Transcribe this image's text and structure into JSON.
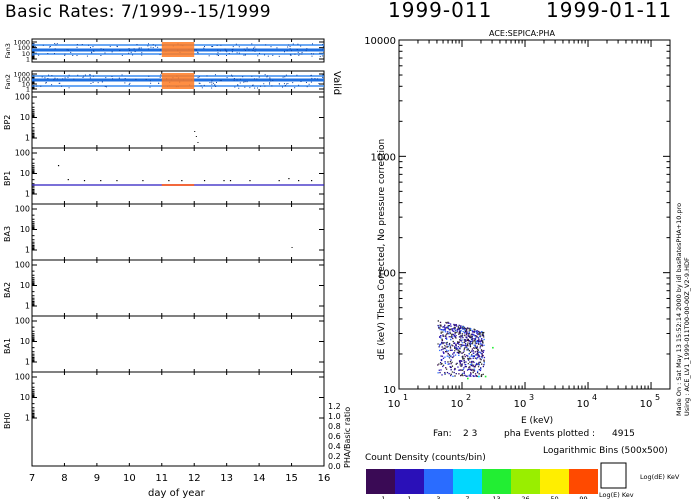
{
  "header": {
    "title": "Basic Rates: 7/1999--15/1999",
    "doy_code": "1999-011",
    "date": "1999-01-11"
  },
  "left_panels": {
    "xlabel": "day of year",
    "x_ticks": [
      "7",
      "8",
      "9",
      "10",
      "11",
      "12",
      "13",
      "14",
      "15",
      "16"
    ],
    "xlim": [
      7,
      16
    ],
    "highlight_day_range": [
      11,
      12
    ],
    "panels": [
      {
        "name": "Fan3",
        "ticks": [
          "1000",
          "100",
          "10",
          "1"
        ],
        "right_label": "Valid"
      },
      {
        "name": "Fan2",
        "ticks": [
          "1000",
          "100",
          "10",
          "1"
        ],
        "right_label": ""
      },
      {
        "name": "BP2",
        "ticks": [
          "100",
          "10",
          "1"
        ],
        "right_label": ""
      },
      {
        "name": "BP1",
        "ticks": [
          "100",
          "10",
          "1"
        ],
        "right_label": ""
      },
      {
        "name": "BA3",
        "ticks": [
          "100",
          "10",
          "1"
        ],
        "right_label": ""
      },
      {
        "name": "BA2",
        "ticks": [
          "100",
          "10",
          "1"
        ],
        "right_label": ""
      },
      {
        "name": "BA1",
        "ticks": [
          "100",
          "10",
          "1"
        ],
        "right_label": ""
      },
      {
        "name": "BH0",
        "ticks": [
          "100",
          "10",
          "1"
        ],
        "right_label": ""
      }
    ],
    "ratio_axis": {
      "label": "PHA/Basic ratio",
      "ticks": [
        "0.0",
        "0.2",
        "0.4",
        "0.6",
        "0.8",
        "1.0",
        "1.2"
      ]
    }
  },
  "chart_data": {
    "type": "scatter",
    "title": "ACE:SEPICA:PHA",
    "xlabel": "E (keV)",
    "ylabel": "dE (keV) Theta Corrected, No pressure correction",
    "xscale": "log",
    "yscale": "log",
    "xlim": [
      10,
      200000
    ],
    "ylim": [
      10,
      10000
    ],
    "x_ticks": [
      {
        "base": "10",
        "exp": "1",
        "v": 10
      },
      {
        "base": "10",
        "exp": "2",
        "v": 100
      },
      {
        "base": "10",
        "exp": "3",
        "v": 1000
      },
      {
        "base": "10",
        "exp": "4",
        "v": 10000
      },
      {
        "base": "10",
        "exp": "5",
        "v": 100000
      }
    ],
    "y_ticks": [
      {
        "label": "10000",
        "v": 10000
      },
      {
        "label": "1000",
        "v": 1000
      },
      {
        "label": "100",
        "v": 100
      },
      {
        "label": "10",
        "v": 10
      }
    ],
    "cluster": {
      "e_range": [
        40,
        300
      ],
      "de_range": [
        13,
        40
      ]
    },
    "fan_label": "Fan:",
    "fans": "2 3",
    "events_label": "pha Events plotted :",
    "events": "4915"
  },
  "legend": {
    "count_density_label": "Count Density (counts/bin)",
    "bins_label": "Logarithmic Bins (500x500)",
    "colors": [
      "#3a0a55",
      "#2a10b8",
      "#2a6cff",
      "#00d8ff",
      "#22ee33",
      "#99ee00",
      "#ffee00",
      "#ff4a00"
    ],
    "ticks": [
      "1",
      "1",
      "3",
      "7",
      "13",
      "26",
      "50",
      "99"
    ],
    "box_label_de": "Log(dE) KeV",
    "box_label_e": "Log(E) Kev"
  },
  "side_note": {
    "line1": "Made On : Sat May 13 15:52:14 2000   by idl basRatesPHA+10.pro",
    "line2": "Using : ACE_LV1_1999-011T00-00-00Z_V2-9.HDF"
  }
}
